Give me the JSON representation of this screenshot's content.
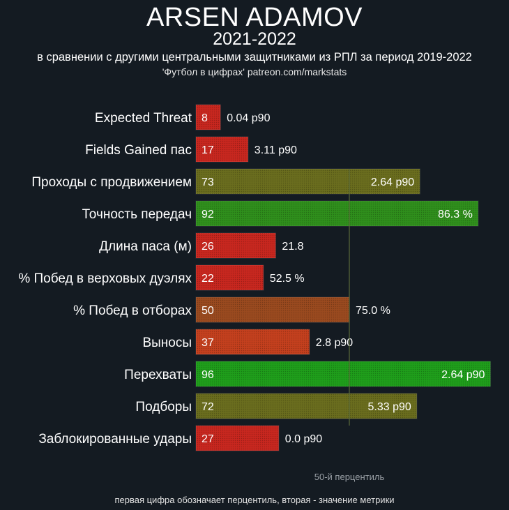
{
  "header": {
    "title": "ARSEN ADAMOV",
    "season": "2021-2022",
    "subtitle": "в сравнении с другими центральными защитниками из РПЛ за период 2019-2022",
    "source": "'Футбол в цифрах' patreon.com/markstats"
  },
  "footer": {
    "median_label": "50-й перцентиль",
    "note": "первая цифра обозначает перцентиль, вторая - значение метрики"
  },
  "colors": {
    "background": "#141b22",
    "low": "#c8271f",
    "below_mid": "#c4401e",
    "mid": "#9a4a1f",
    "above_mid": "#6a6d1e",
    "high": "#2f8f1c",
    "top": "#1f9e1b"
  },
  "chart_data": {
    "type": "bar",
    "orientation": "horizontal",
    "xlim": [
      0,
      100
    ],
    "median_line": 50,
    "categories": [
      "Expected Threat",
      "Fields Gained пас",
      "Проходы с продвижением",
      "Точность передач",
      "Длина паса (м)",
      "% Побед в верховых дуэлях",
      "% Побед в отборах",
      "Выносы",
      "Перехваты",
      "Подборы",
      "Заблокированные удары"
    ],
    "values": [
      8,
      17,
      73,
      92,
      26,
      22,
      50,
      37,
      96,
      72,
      27
    ],
    "value_labels": [
      "0.04 p90",
      "3.11 p90",
      "2.64 p90",
      "86.3 %",
      "21.8",
      "52.5 %",
      "75.0 %",
      "2.8 p90",
      "2.64 p90",
      "5.33 p90",
      "0.0 p90"
    ]
  }
}
